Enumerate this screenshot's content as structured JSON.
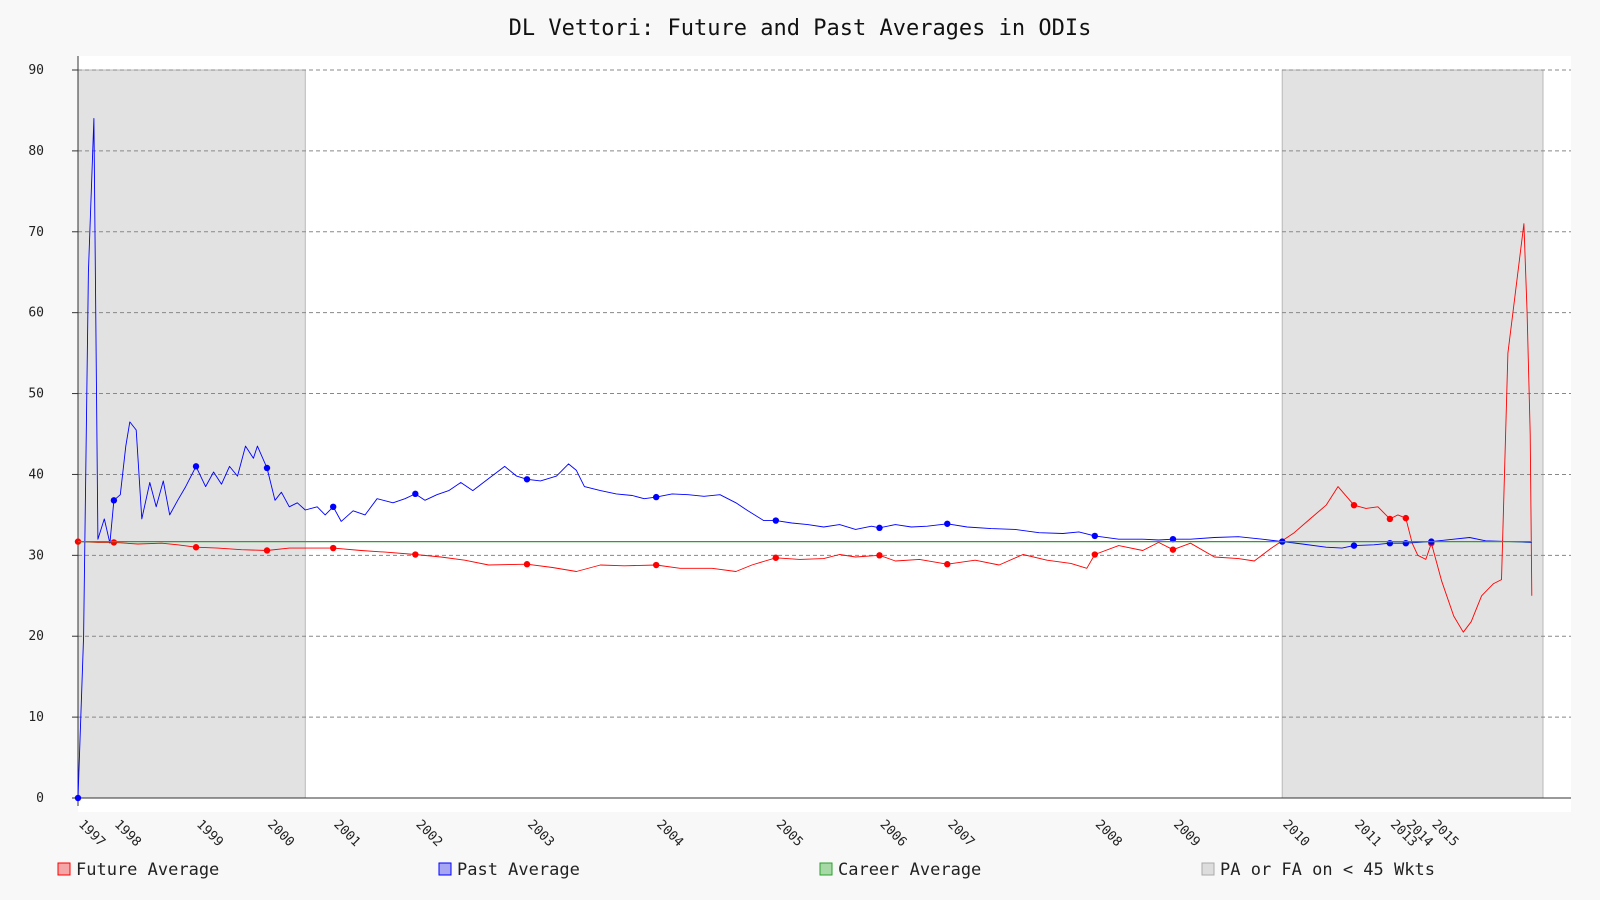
{
  "chart_data": {
    "type": "line",
    "title": "DL Vettori: Future and Past Averages in ODIs",
    "xlabel": "",
    "ylabel": "",
    "xlim": [
      1997.35,
      2015.72
    ],
    "ylim": [
      0,
      90
    ],
    "yticks": [
      0,
      10,
      20,
      30,
      40,
      50,
      60,
      70,
      80,
      90
    ],
    "xticks": [
      {
        "label": "1997",
        "x": 1997.35
      },
      {
        "label": "1998",
        "x": 1997.8
      },
      {
        "label": "1999",
        "x": 1998.83
      },
      {
        "label": "2000",
        "x": 1999.72
      },
      {
        "label": "2001",
        "x": 2000.55
      },
      {
        "label": "2002",
        "x": 2001.58
      },
      {
        "label": "2003",
        "x": 2002.98
      },
      {
        "label": "2004",
        "x": 2004.6
      },
      {
        "label": "2005",
        "x": 2006.1
      },
      {
        "label": "2006",
        "x": 2007.4
      },
      {
        "label": "2007",
        "x": 2008.25
      },
      {
        "label": "2008",
        "x": 2010.1
      },
      {
        "label": "2009",
        "x": 2011.08
      },
      {
        "label": "2010",
        "x": 2012.45
      },
      {
        "label": "2011",
        "x": 2013.35
      },
      {
        "label": "2013",
        "x": 2013.8
      },
      {
        "label": "2014",
        "x": 2014.0
      },
      {
        "label": "2015",
        "x": 2014.32
      }
    ],
    "grid": true,
    "legend_position": "bottom",
    "shaded_regions": [
      {
        "name": "PA or FA on < 45 Wkts",
        "start": 1997.35,
        "end": 2000.2
      },
      {
        "name": "PA or FA on < 45 Wkts",
        "start": 2012.45,
        "end": 2015.72
      }
    ],
    "series": [
      {
        "name": "Future Average",
        "color": "#ff0000",
        "points": [
          [
            1997.35,
            31.7
          ],
          [
            1997.6,
            31.6
          ],
          [
            1997.8,
            31.6
          ],
          [
            1998.1,
            31.4
          ],
          [
            1998.4,
            31.5
          ],
          [
            1998.6,
            31.3
          ],
          [
            1998.83,
            31.0
          ],
          [
            1999.1,
            30.9
          ],
          [
            1999.4,
            30.7
          ],
          [
            1999.72,
            30.6
          ],
          [
            2000.0,
            30.9
          ],
          [
            2000.3,
            30.9
          ],
          [
            2000.55,
            30.9
          ],
          [
            2000.9,
            30.6
          ],
          [
            2001.2,
            30.4
          ],
          [
            2001.58,
            30.1
          ],
          [
            2001.9,
            29.8
          ],
          [
            2002.2,
            29.4
          ],
          [
            2002.5,
            28.8
          ],
          [
            2002.98,
            28.9
          ],
          [
            2003.3,
            28.5
          ],
          [
            2003.6,
            28.0
          ],
          [
            2003.9,
            28.8
          ],
          [
            2004.2,
            28.7
          ],
          [
            2004.6,
            28.8
          ],
          [
            2004.9,
            28.4
          ],
          [
            2005.3,
            28.4
          ],
          [
            2005.6,
            28.0
          ],
          [
            2005.8,
            28.8
          ],
          [
            2006.1,
            29.7
          ],
          [
            2006.4,
            29.5
          ],
          [
            2006.7,
            29.6
          ],
          [
            2006.9,
            30.1
          ],
          [
            2007.1,
            29.8
          ],
          [
            2007.4,
            30.0
          ],
          [
            2007.6,
            29.3
          ],
          [
            2007.9,
            29.5
          ],
          [
            2008.25,
            28.9
          ],
          [
            2008.6,
            29.4
          ],
          [
            2008.9,
            28.8
          ],
          [
            2009.2,
            30.1
          ],
          [
            2009.5,
            29.4
          ],
          [
            2009.8,
            29.0
          ],
          [
            2010.0,
            28.4
          ],
          [
            2010.1,
            30.1
          ],
          [
            2010.4,
            31.2
          ],
          [
            2010.7,
            30.6
          ],
          [
            2010.9,
            31.6
          ],
          [
            2011.08,
            30.7
          ],
          [
            2011.3,
            31.5
          ],
          [
            2011.6,
            29.8
          ],
          [
            2011.9,
            29.6
          ],
          [
            2012.1,
            29.3
          ],
          [
            2012.3,
            30.8
          ],
          [
            2012.45,
            31.8
          ],
          [
            2012.6,
            32.8
          ],
          [
            2012.8,
            34.5
          ],
          [
            2013.0,
            36.2
          ],
          [
            2013.15,
            38.5
          ],
          [
            2013.35,
            36.2
          ],
          [
            2013.5,
            35.8
          ],
          [
            2013.65,
            36.0
          ],
          [
            2013.8,
            34.5
          ],
          [
            2013.9,
            35.0
          ],
          [
            2014.0,
            34.6
          ],
          [
            2014.08,
            31.5
          ],
          [
            2014.15,
            30.0
          ],
          [
            2014.25,
            29.5
          ],
          [
            2014.32,
            31.5
          ],
          [
            2014.45,
            26.8
          ],
          [
            2014.6,
            22.5
          ],
          [
            2014.72,
            20.5
          ],
          [
            2014.82,
            21.8
          ],
          [
            2014.95,
            25.0
          ],
          [
            2015.1,
            26.5
          ],
          [
            2015.2,
            27.0
          ],
          [
            2015.28,
            55.0
          ],
          [
            2015.38,
            63.0
          ],
          [
            2015.48,
            71.0
          ],
          [
            2015.52,
            60.0
          ],
          [
            2015.56,
            45.0
          ],
          [
            2015.58,
            25.0
          ]
        ],
        "markers": [
          [
            1997.35,
            31.7
          ],
          [
            1997.8,
            31.6
          ],
          [
            1998.83,
            31.0
          ],
          [
            1999.72,
            30.6
          ],
          [
            2000.55,
            30.9
          ],
          [
            2001.58,
            30.1
          ],
          [
            2002.98,
            28.9
          ],
          [
            2004.6,
            28.8
          ],
          [
            2006.1,
            29.7
          ],
          [
            2007.4,
            30.0
          ],
          [
            2008.25,
            28.9
          ],
          [
            2010.1,
            30.1
          ],
          [
            2011.08,
            30.7
          ],
          [
            2013.35,
            36.2
          ],
          [
            2013.8,
            34.5
          ],
          [
            2014.0,
            34.6
          ],
          [
            2014.32,
            31.5
          ]
        ]
      },
      {
        "name": "Past Average",
        "color": "#0000ff",
        "points": [
          [
            1997.35,
            0.0
          ],
          [
            1997.42,
            20.0
          ],
          [
            1997.48,
            65.0
          ],
          [
            1997.55,
            84.0
          ],
          [
            1997.6,
            32.0
          ],
          [
            1997.68,
            34.5
          ],
          [
            1997.75,
            31.5
          ],
          [
            1997.8,
            36.8
          ],
          [
            1997.88,
            37.5
          ],
          [
            1997.95,
            43.5
          ],
          [
            1998.0,
            46.5
          ],
          [
            1998.08,
            45.5
          ],
          [
            1998.15,
            34.5
          ],
          [
            1998.25,
            39.0
          ],
          [
            1998.33,
            36.0
          ],
          [
            1998.42,
            39.2
          ],
          [
            1998.5,
            35.0
          ],
          [
            1998.6,
            36.8
          ],
          [
            1998.7,
            38.5
          ],
          [
            1998.83,
            41.0
          ],
          [
            1998.95,
            38.5
          ],
          [
            1999.05,
            40.3
          ],
          [
            1999.15,
            38.8
          ],
          [
            1999.25,
            41.0
          ],
          [
            1999.35,
            39.8
          ],
          [
            1999.45,
            43.5
          ],
          [
            1999.55,
            42.0
          ],
          [
            1999.6,
            43.5
          ],
          [
            1999.72,
            40.8
          ],
          [
            1999.82,
            36.8
          ],
          [
            1999.9,
            37.8
          ],
          [
            2000.0,
            36.0
          ],
          [
            2000.1,
            36.5
          ],
          [
            2000.2,
            35.6
          ],
          [
            2000.35,
            36.0
          ],
          [
            2000.45,
            35.0
          ],
          [
            2000.55,
            36.0
          ],
          [
            2000.65,
            34.2
          ],
          [
            2000.8,
            35.5
          ],
          [
            2000.95,
            35.0
          ],
          [
            2001.1,
            37.0
          ],
          [
            2001.3,
            36.5
          ],
          [
            2001.45,
            37.0
          ],
          [
            2001.58,
            37.6
          ],
          [
            2001.7,
            36.8
          ],
          [
            2001.85,
            37.5
          ],
          [
            2002.0,
            38.0
          ],
          [
            2002.15,
            39.0
          ],
          [
            2002.3,
            38.0
          ],
          [
            2002.5,
            39.5
          ],
          [
            2002.7,
            41.0
          ],
          [
            2002.85,
            39.8
          ],
          [
            2002.98,
            39.4
          ],
          [
            2003.15,
            39.2
          ],
          [
            2003.35,
            39.8
          ],
          [
            2003.5,
            41.3
          ],
          [
            2003.6,
            40.5
          ],
          [
            2003.7,
            38.5
          ],
          [
            2003.9,
            38.0
          ],
          [
            2004.1,
            37.6
          ],
          [
            2004.3,
            37.4
          ],
          [
            2004.45,
            37.0
          ],
          [
            2004.6,
            37.2
          ],
          [
            2004.8,
            37.6
          ],
          [
            2005.0,
            37.5
          ],
          [
            2005.2,
            37.3
          ],
          [
            2005.4,
            37.5
          ],
          [
            2005.6,
            36.5
          ],
          [
            2005.75,
            35.5
          ],
          [
            2005.95,
            34.3
          ],
          [
            2006.1,
            34.3
          ],
          [
            2006.3,
            34.0
          ],
          [
            2006.5,
            33.8
          ],
          [
            2006.7,
            33.5
          ],
          [
            2006.9,
            33.8
          ],
          [
            2007.1,
            33.2
          ],
          [
            2007.3,
            33.6
          ],
          [
            2007.4,
            33.4
          ],
          [
            2007.6,
            33.8
          ],
          [
            2007.8,
            33.5
          ],
          [
            2008.0,
            33.6
          ],
          [
            2008.25,
            33.9
          ],
          [
            2008.5,
            33.5
          ],
          [
            2008.8,
            33.3
          ],
          [
            2009.1,
            33.2
          ],
          [
            2009.4,
            32.8
          ],
          [
            2009.7,
            32.7
          ],
          [
            2009.9,
            32.9
          ],
          [
            2010.1,
            32.4
          ],
          [
            2010.4,
            32.0
          ],
          [
            2010.7,
            32.0
          ],
          [
            2010.9,
            31.9
          ],
          [
            2011.08,
            32.0
          ],
          [
            2011.3,
            32.0
          ],
          [
            2011.6,
            32.2
          ],
          [
            2011.9,
            32.3
          ],
          [
            2012.2,
            32.0
          ],
          [
            2012.45,
            31.7
          ],
          [
            2012.7,
            31.4
          ],
          [
            2013.0,
            31.0
          ],
          [
            2013.2,
            30.9
          ],
          [
            2013.35,
            31.2
          ],
          [
            2013.6,
            31.3
          ],
          [
            2013.8,
            31.5
          ],
          [
            2014.0,
            31.5
          ],
          [
            2014.32,
            31.7
          ],
          [
            2014.6,
            32.0
          ],
          [
            2014.8,
            32.2
          ],
          [
            2015.0,
            31.8
          ],
          [
            2015.3,
            31.7
          ],
          [
            2015.58,
            31.6
          ]
        ],
        "markers": [
          [
            1997.35,
            0.0
          ],
          [
            1997.8,
            36.8
          ],
          [
            1998.83,
            41.0
          ],
          [
            1999.72,
            40.8
          ],
          [
            2000.55,
            36.0
          ],
          [
            2001.58,
            37.6
          ],
          [
            2002.98,
            39.4
          ],
          [
            2004.6,
            37.2
          ],
          [
            2006.1,
            34.3
          ],
          [
            2007.4,
            33.4
          ],
          [
            2008.25,
            33.9
          ],
          [
            2010.1,
            32.4
          ],
          [
            2011.08,
            32.0
          ],
          [
            2012.45,
            31.7
          ],
          [
            2013.35,
            31.2
          ],
          [
            2013.8,
            31.5
          ],
          [
            2014.0,
            31.5
          ],
          [
            2014.32,
            31.7
          ]
        ]
      },
      {
        "name": "Career Average",
        "color": "#2ca02c",
        "points": [
          [
            1997.35,
            31.7
          ],
          [
            2015.58,
            31.7
          ]
        ]
      }
    ],
    "legend": [
      {
        "label": "Future Average",
        "color": "#ff0000",
        "fill": "#f5a6a6"
      },
      {
        "label": "Past Average",
        "color": "#0000ff",
        "fill": "#a6a6f5"
      },
      {
        "label": "Career Average",
        "color": "#2ca02c",
        "fill": "#a6d9a6"
      },
      {
        "label": "PA or FA on < 45 Wkts",
        "color": "#aaaaaa",
        "fill": "#dddddd"
      }
    ]
  }
}
